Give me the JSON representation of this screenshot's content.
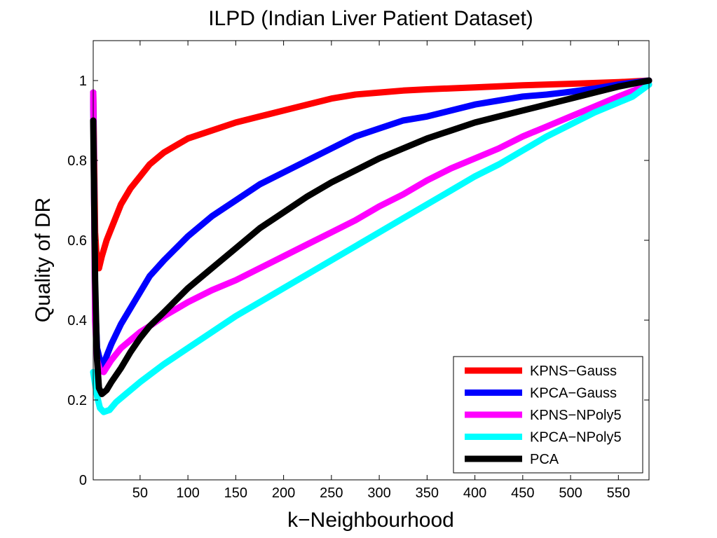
{
  "chart_data": {
    "type": "line",
    "title": "ILPD (Indian Liver Patient Dataset)",
    "xlabel": "k−Neighbourhood",
    "ylabel": "Quality of DR",
    "xlim": [
      1,
      582
    ],
    "ylim": [
      0,
      1.1
    ],
    "x_ticks": [
      50,
      100,
      150,
      200,
      250,
      300,
      350,
      400,
      450,
      500,
      550
    ],
    "x_tick_labels": [
      "50",
      "100",
      "150",
      "200",
      "250",
      "300",
      "350",
      "400",
      "450",
      "500",
      "550"
    ],
    "y_ticks": [
      0,
      0.2,
      0.4,
      0.6,
      0.8,
      1
    ],
    "y_tick_labels": [
      "0",
      "0.2",
      "0.4",
      "0.6",
      "0.8",
      "1"
    ],
    "grid": false,
    "legend_position": "bottom-right",
    "series": [
      {
        "name": "KPNS−Gauss",
        "color": "#ff0000",
        "points": [
          [
            1,
            0.97
          ],
          [
            3,
            0.62
          ],
          [
            5,
            0.54
          ],
          [
            7,
            0.53
          ],
          [
            10,
            0.56
          ],
          [
            15,
            0.6
          ],
          [
            20,
            0.63
          ],
          [
            30,
            0.69
          ],
          [
            40,
            0.73
          ],
          [
            50,
            0.76
          ],
          [
            60,
            0.79
          ],
          [
            75,
            0.82
          ],
          [
            100,
            0.855
          ],
          [
            125,
            0.875
          ],
          [
            150,
            0.895
          ],
          [
            175,
            0.91
          ],
          [
            200,
            0.925
          ],
          [
            225,
            0.94
          ],
          [
            250,
            0.955
          ],
          [
            275,
            0.965
          ],
          [
            300,
            0.97
          ],
          [
            325,
            0.975
          ],
          [
            350,
            0.978
          ],
          [
            400,
            0.983
          ],
          [
            450,
            0.988
          ],
          [
            500,
            0.992
          ],
          [
            550,
            0.996
          ],
          [
            582,
            1.0
          ]
        ]
      },
      {
        "name": "KPCA−Gauss",
        "color": "#0000ff",
        "points": [
          [
            1,
            0.97
          ],
          [
            3,
            0.45
          ],
          [
            5,
            0.33
          ],
          [
            8,
            0.3
          ],
          [
            11,
            0.285
          ],
          [
            15,
            0.31
          ],
          [
            20,
            0.34
          ],
          [
            30,
            0.39
          ],
          [
            40,
            0.43
          ],
          [
            50,
            0.47
          ],
          [
            60,
            0.51
          ],
          [
            75,
            0.55
          ],
          [
            100,
            0.61
          ],
          [
            125,
            0.66
          ],
          [
            150,
            0.7
          ],
          [
            175,
            0.74
          ],
          [
            200,
            0.77
          ],
          [
            225,
            0.8
          ],
          [
            250,
            0.83
          ],
          [
            275,
            0.86
          ],
          [
            300,
            0.88
          ],
          [
            325,
            0.9
          ],
          [
            350,
            0.91
          ],
          [
            375,
            0.925
          ],
          [
            400,
            0.94
          ],
          [
            425,
            0.95
          ],
          [
            450,
            0.96
          ],
          [
            475,
            0.965
          ],
          [
            500,
            0.972
          ],
          [
            525,
            0.98
          ],
          [
            550,
            0.99
          ],
          [
            582,
            1.0
          ]
        ]
      },
      {
        "name": "KPNS−NPoly5",
        "color": "#ff00ff",
        "points": [
          [
            1,
            0.97
          ],
          [
            3,
            0.4
          ],
          [
            5,
            0.3
          ],
          [
            8,
            0.275
          ],
          [
            12,
            0.27
          ],
          [
            20,
            0.3
          ],
          [
            30,
            0.33
          ],
          [
            40,
            0.35
          ],
          [
            50,
            0.37
          ],
          [
            60,
            0.385
          ],
          [
            75,
            0.41
          ],
          [
            100,
            0.445
          ],
          [
            125,
            0.475
          ],
          [
            150,
            0.5
          ],
          [
            175,
            0.53
          ],
          [
            200,
            0.56
          ],
          [
            225,
            0.59
          ],
          [
            250,
            0.62
          ],
          [
            275,
            0.65
          ],
          [
            300,
            0.685
          ],
          [
            325,
            0.715
          ],
          [
            350,
            0.75
          ],
          [
            375,
            0.78
          ],
          [
            400,
            0.805
          ],
          [
            425,
            0.83
          ],
          [
            450,
            0.86
          ],
          [
            475,
            0.885
          ],
          [
            500,
            0.91
          ],
          [
            525,
            0.935
          ],
          [
            550,
            0.96
          ],
          [
            582,
            0.99
          ]
        ]
      },
      {
        "name": "KPCA−NPoly5",
        "color": "#00ffff",
        "points": [
          [
            1,
            0.27
          ],
          [
            3,
            0.24
          ],
          [
            5,
            0.21
          ],
          [
            8,
            0.18
          ],
          [
            12,
            0.17
          ],
          [
            18,
            0.175
          ],
          [
            25,
            0.195
          ],
          [
            35,
            0.215
          ],
          [
            50,
            0.245
          ],
          [
            75,
            0.29
          ],
          [
            100,
            0.33
          ],
          [
            125,
            0.37
          ],
          [
            150,
            0.41
          ],
          [
            175,
            0.445
          ],
          [
            200,
            0.48
          ],
          [
            225,
            0.515
          ],
          [
            250,
            0.55
          ],
          [
            275,
            0.585
          ],
          [
            300,
            0.62
          ],
          [
            325,
            0.655
          ],
          [
            350,
            0.69
          ],
          [
            375,
            0.725
          ],
          [
            400,
            0.76
          ],
          [
            425,
            0.79
          ],
          [
            450,
            0.825
          ],
          [
            475,
            0.86
          ],
          [
            500,
            0.89
          ],
          [
            525,
            0.92
          ],
          [
            550,
            0.945
          ],
          [
            565,
            0.96
          ],
          [
            582,
            0.99
          ]
        ]
      },
      {
        "name": "PCA",
        "color": "#000000",
        "points": [
          [
            1,
            0.9
          ],
          [
            3,
            0.5
          ],
          [
            5,
            0.3
          ],
          [
            7,
            0.23
          ],
          [
            10,
            0.215
          ],
          [
            15,
            0.225
          ],
          [
            20,
            0.245
          ],
          [
            30,
            0.28
          ],
          [
            40,
            0.32
          ],
          [
            50,
            0.355
          ],
          [
            60,
            0.385
          ],
          [
            75,
            0.42
          ],
          [
            100,
            0.48
          ],
          [
            125,
            0.53
          ],
          [
            150,
            0.58
          ],
          [
            175,
            0.63
          ],
          [
            200,
            0.67
          ],
          [
            225,
            0.71
          ],
          [
            250,
            0.745
          ],
          [
            275,
            0.775
          ],
          [
            300,
            0.805
          ],
          [
            325,
            0.83
          ],
          [
            350,
            0.855
          ],
          [
            375,
            0.875
          ],
          [
            400,
            0.895
          ],
          [
            425,
            0.91
          ],
          [
            450,
            0.925
          ],
          [
            475,
            0.94
          ],
          [
            500,
            0.955
          ],
          [
            525,
            0.97
          ],
          [
            550,
            0.985
          ],
          [
            582,
            1.0
          ]
        ]
      }
    ]
  }
}
